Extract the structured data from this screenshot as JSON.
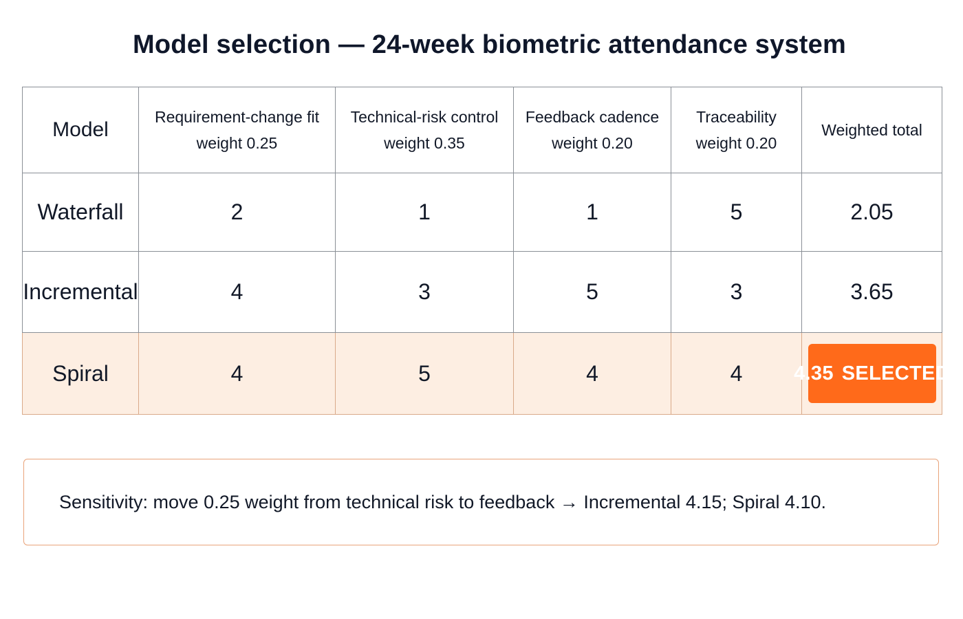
{
  "title": "Model selection — 24-week biometric attendance system",
  "table": {
    "headers": [
      {
        "line1": "Model",
        "line2": ""
      },
      {
        "line1": "Requirement-change fit",
        "line2": "weight 0.25"
      },
      {
        "line1": "Technical-risk control",
        "line2": "weight 0.35"
      },
      {
        "line1": "Feedback cadence",
        "line2": "weight 0.20"
      },
      {
        "line1": "Traceability",
        "line2": "weight 0.20"
      },
      {
        "line1": "Weighted total",
        "line2": ""
      }
    ],
    "rows": [
      {
        "model": "Waterfall",
        "req": "2",
        "risk": "1",
        "feedback": "1",
        "trace": "5",
        "total": "2.05"
      },
      {
        "model": "Incremental",
        "req": "4",
        "risk": "3",
        "feedback": "5",
        "trace": "3",
        "total": "3.65"
      },
      {
        "model": "Spiral",
        "req": "4",
        "risk": "5",
        "feedback": "4",
        "trace": "4",
        "total": "4.35",
        "badge": "SELECTED"
      }
    ]
  },
  "note": "Sensitivity: move 0.25 weight from technical risk to feedback → Incremental 4.15; Spiral 4.10.",
  "colors": {
    "accent": "#ff6a1a",
    "selected_row_bg": "#fdeee2",
    "note_border": "#e9a37a",
    "grid": "#8a8f96"
  }
}
